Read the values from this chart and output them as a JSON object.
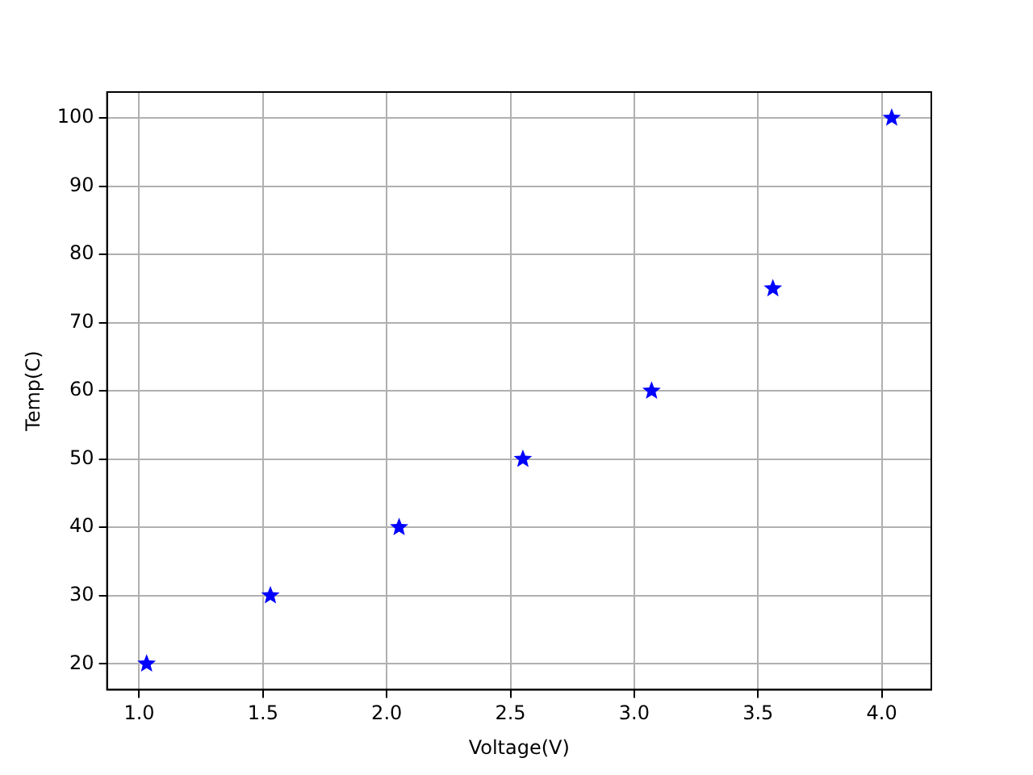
{
  "chart_data": {
    "type": "scatter",
    "xlabel": "Voltage(V)",
    "ylabel": "Temp(C)",
    "x": [
      1.03,
      1.53,
      2.05,
      2.55,
      3.07,
      3.56,
      4.04
    ],
    "series": [
      {
        "color": "#0000ff",
        "values": [
          20,
          30,
          40,
          50,
          60,
          75,
          100
        ]
      }
    ],
    "xlim": [
      0.87,
      4.2
    ],
    "xticks": [
      {
        "value": 1,
        "label": "1.0"
      },
      {
        "value": 1.5,
        "label": "1.5"
      },
      {
        "value": 2,
        "label": "2.0"
      },
      {
        "value": 2.5,
        "label": "2.5"
      },
      {
        "value": 3,
        "label": "3.0"
      },
      {
        "value": 3.5,
        "label": "3.5"
      },
      {
        "value": 4,
        "label": "4.0"
      }
    ],
    "ylim": [
      16.2,
      103.8
    ],
    "yticks": [
      20,
      30,
      40,
      50,
      60,
      70,
      80,
      90,
      100
    ],
    "grid": true,
    "marker": "star",
    "legend": false
  }
}
